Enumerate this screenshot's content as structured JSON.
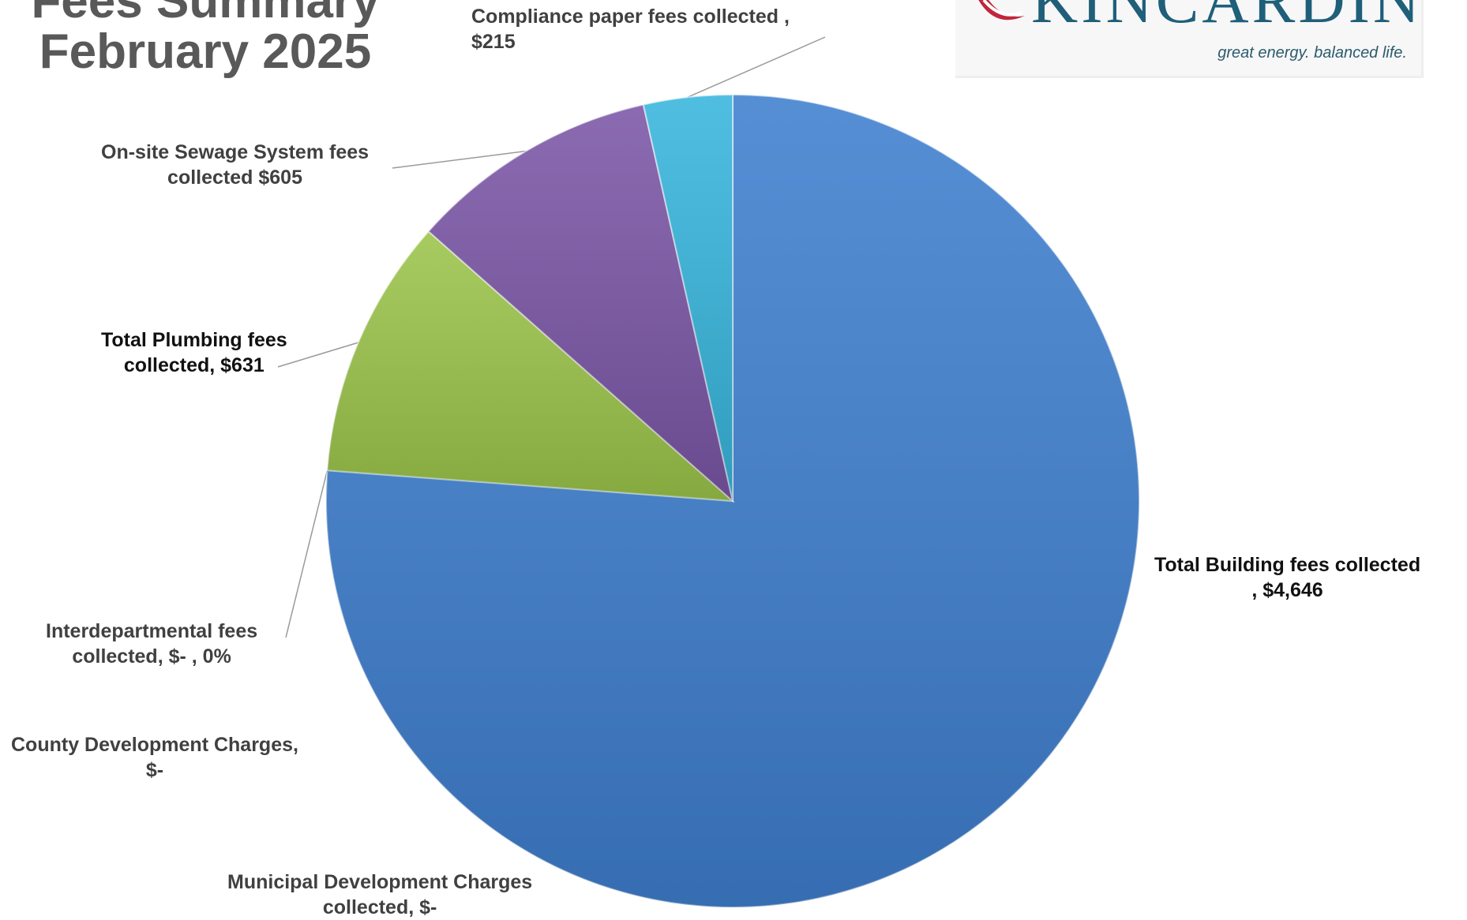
{
  "title": {
    "line1": "Fees Summary",
    "line2": "February 2025"
  },
  "logo": {
    "name": "KINCARDINE",
    "tagline": "great energy. balanced life.",
    "colors": {
      "text": "#1f5f7a",
      "mark": "#c0273a"
    }
  },
  "chart_data": {
    "type": "pie",
    "start": "12 o'clock",
    "direction": "counterclockwise",
    "slices": [
      {
        "name": "Total Building fees collected",
        "value": 4646,
        "color": "#3f7fcf",
        "label_lines": [
          "Total Building fees collected",
          ",  $4,646"
        ]
      },
      {
        "name": "Municipal Development Charges collected",
        "value": 0,
        "color": "#2e75b6",
        "label_lines": [
          "Municipal Development Charges",
          "collected,  $-"
        ]
      },
      {
        "name": "County Development Charges",
        "value": 0,
        "color": "#2e75b6",
        "label_lines": [
          "County Development Charges,",
          "$-"
        ]
      },
      {
        "name": "Interdepartmental fees collected",
        "value": 0,
        "color": "#5b9bd5",
        "label_lines": [
          "Interdepartmental fees",
          "collected,  $-    , 0%"
        ]
      },
      {
        "name": "Total Plumbing fees collected",
        "value": 631,
        "color": "#9bc44a",
        "label_lines": [
          "Total Plumbing fees",
          "collected,  $631"
        ]
      },
      {
        "name": "On-site Sewage System fees collected",
        "value": 605,
        "color": "#7b56a6",
        "label_lines": [
          "On-site Sewage System fees",
          "collected  $605"
        ]
      },
      {
        "name": "Compliance paper fees collected",
        "value": 215,
        "color": "#37b5dc",
        "label_lines": [
          "Compliance paper fees collected ,",
          "$215"
        ]
      }
    ]
  }
}
